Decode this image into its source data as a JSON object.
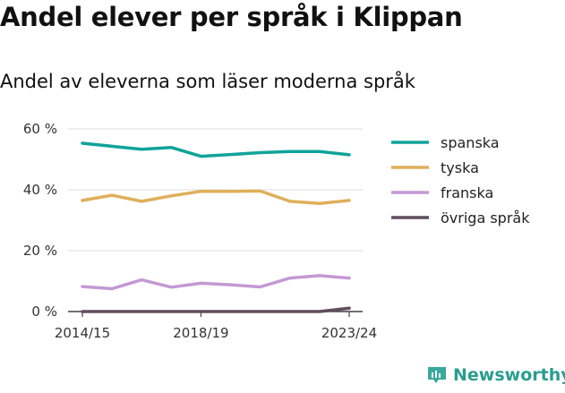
{
  "title": "Andel elever per språk i Klippan",
  "subtitle": "Andel av eleverna som läser moderna språk",
  "brand": {
    "name": "Newsworthy",
    "color": "#2a9d8f"
  },
  "chart_data": {
    "type": "line",
    "x": [
      "2014/15",
      "2015/16",
      "2016/17",
      "2017/18",
      "2018/19",
      "2019/20",
      "2020/21",
      "2021/22",
      "2022/23",
      "2023/24"
    ],
    "xticks": [
      "2014/15",
      "2018/19",
      "2023/24"
    ],
    "ylim": [
      0,
      60
    ],
    "yticks": [
      0,
      20,
      40,
      60
    ],
    "ytick_labels": [
      "0 %",
      "20 %",
      "40 %",
      "60 %"
    ],
    "grid": true,
    "legend_position": "right",
    "series": [
      {
        "name": "spanska",
        "color": "#10a399",
        "values": [
          55.3,
          54.3,
          53.3,
          53.9,
          51.0,
          51.6,
          52.2,
          52.6,
          52.6,
          51.5
        ]
      },
      {
        "name": "tyska",
        "color": "#dfaf5a",
        "values": [
          36.5,
          38.2,
          36.2,
          38.0,
          39.5,
          39.5,
          39.6,
          36.2,
          35.5,
          36.5
        ]
      },
      {
        "name": "franska",
        "color": "#c399d4",
        "values": [
          8.2,
          7.5,
          10.4,
          8.0,
          9.3,
          8.8,
          8.1,
          11.0,
          11.8,
          11.0
        ]
      },
      {
        "name": "övriga språk",
        "color": "#604e5e",
        "values": [
          0,
          0,
          0,
          0,
          0,
          0,
          0,
          0,
          0,
          1.1
        ]
      }
    ]
  }
}
